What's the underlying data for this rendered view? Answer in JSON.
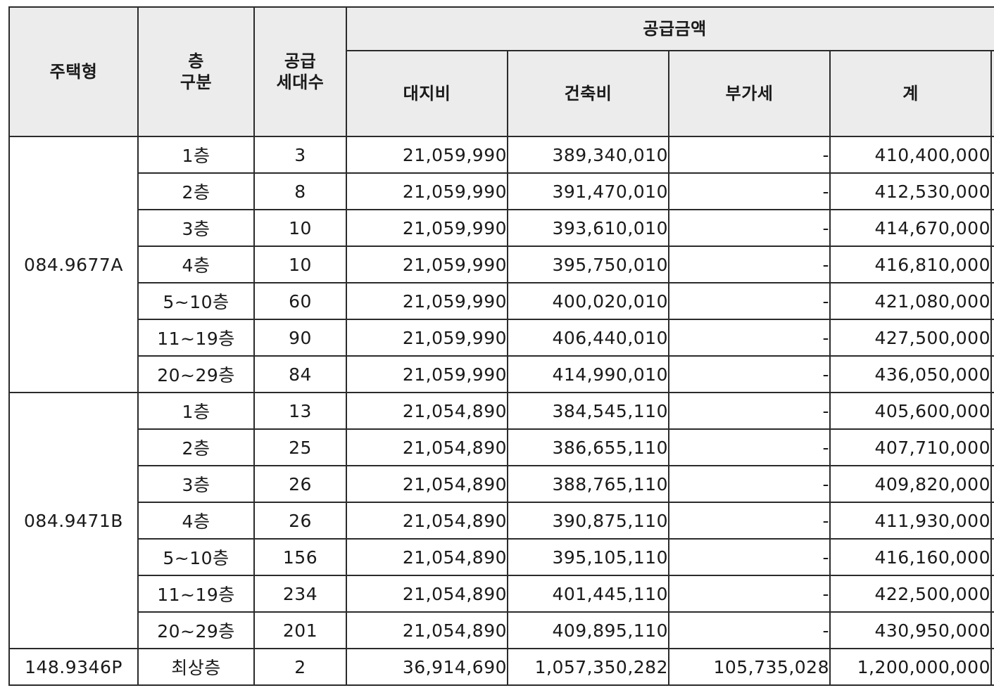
{
  "header": {
    "housing_type": "주택형",
    "floor_line1": "층",
    "floor_line2": "구분",
    "supply_line1": "공급",
    "supply_line2": "세대수",
    "supply_price": "공급금액",
    "land_cost": "대지비",
    "building_cost": "건축비",
    "vat": "부가세",
    "total": "계"
  },
  "groups": [
    {
      "type": "084.9677A",
      "rows": [
        {
          "floor": "1층",
          "units": "3",
          "land": "21,059,990",
          "building": "389,340,010",
          "vat": "-",
          "total": "410,400,000"
        },
        {
          "floor": "2층",
          "units": "8",
          "land": "21,059,990",
          "building": "391,470,010",
          "vat": "-",
          "total": "412,530,000"
        },
        {
          "floor": "3층",
          "units": "10",
          "land": "21,059,990",
          "building": "393,610,010",
          "vat": "-",
          "total": "414,670,000"
        },
        {
          "floor": "4층",
          "units": "10",
          "land": "21,059,990",
          "building": "395,750,010",
          "vat": "-",
          "total": "416,810,000"
        },
        {
          "floor": "5~10층",
          "units": "60",
          "land": "21,059,990",
          "building": "400,020,010",
          "vat": "-",
          "total": "421,080,000"
        },
        {
          "floor": "11~19층",
          "units": "90",
          "land": "21,059,990",
          "building": "406,440,010",
          "vat": "-",
          "total": "427,500,000"
        },
        {
          "floor": "20~29층",
          "units": "84",
          "land": "21,059,990",
          "building": "414,990,010",
          "vat": "-",
          "total": "436,050,000"
        }
      ]
    },
    {
      "type": "084.9471B",
      "rows": [
        {
          "floor": "1층",
          "units": "13",
          "land": "21,054,890",
          "building": "384,545,110",
          "vat": "-",
          "total": "405,600,000"
        },
        {
          "floor": "2층",
          "units": "25",
          "land": "21,054,890",
          "building": "386,655,110",
          "vat": "-",
          "total": "407,710,000"
        },
        {
          "floor": "3층",
          "units": "26",
          "land": "21,054,890",
          "building": "388,765,110",
          "vat": "-",
          "total": "409,820,000"
        },
        {
          "floor": "4층",
          "units": "26",
          "land": "21,054,890",
          "building": "390,875,110",
          "vat": "-",
          "total": "411,930,000"
        },
        {
          "floor": "5~10층",
          "units": "156",
          "land": "21,054,890",
          "building": "395,105,110",
          "vat": "-",
          "total": "416,160,000"
        },
        {
          "floor": "11~19층",
          "units": "234",
          "land": "21,054,890",
          "building": "401,445,110",
          "vat": "-",
          "total": "422,500,000"
        },
        {
          "floor": "20~29층",
          "units": "201",
          "land": "21,054,890",
          "building": "409,895,110",
          "vat": "-",
          "total": "430,950,000"
        }
      ]
    },
    {
      "type": "148.9346P",
      "rows": [
        {
          "floor": "최상층",
          "units": "2",
          "land": "36,914,690",
          "building": "1,057,350,282",
          "vat": "105,735,028",
          "total": "1,200,000,000"
        }
      ]
    }
  ]
}
